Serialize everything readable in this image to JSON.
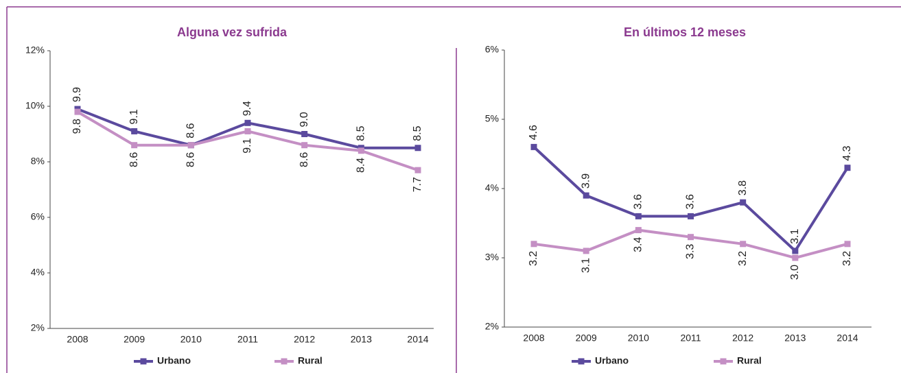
{
  "chart_data": [
    {
      "type": "line",
      "title": "Alguna vez sufrida",
      "categories": [
        "2008",
        "2009",
        "2010",
        "2011",
        "2012",
        "2013",
        "2014"
      ],
      "series": [
        {
          "name": "Urbano",
          "color": "#5b4a9e",
          "values": [
            9.9,
            9.1,
            8.6,
            9.4,
            9.0,
            8.5,
            8.5
          ],
          "value_labels": [
            "9.9",
            "9.1",
            "8.6",
            "9.4",
            "9.0",
            "8.5",
            "8.5"
          ]
        },
        {
          "name": "Rural",
          "color": "#c48fc4",
          "values": [
            9.8,
            8.6,
            8.6,
            9.1,
            8.6,
            8.4,
            7.7
          ],
          "value_labels": [
            "9.8",
            "8.6",
            "8.6",
            "9.1",
            "8.6",
            "8.4",
            "7.7"
          ]
        }
      ],
      "ylim": [
        2,
        12
      ],
      "yticks": [
        {
          "value": 2,
          "label": "2%"
        },
        {
          "value": 4,
          "label": "4%"
        },
        {
          "value": 6,
          "label": "6%"
        },
        {
          "value": 8,
          "label": "8%"
        },
        {
          "value": 10,
          "label": "10%"
        },
        {
          "value": 12,
          "label": "12%"
        }
      ],
      "grid": false,
      "legend": "bottom"
    },
    {
      "type": "line",
      "title": "En últimos 12 meses",
      "categories": [
        "2008",
        "2009",
        "2010",
        "2011",
        "2012",
        "2013",
        "2014"
      ],
      "series": [
        {
          "name": "Urbano",
          "color": "#5b4a9e",
          "values": [
            4.6,
            3.9,
            3.6,
            3.6,
            3.8,
            3.1,
            4.3
          ],
          "value_labels": [
            "4.6",
            "3.9",
            "3.6",
            "3.6",
            "3.8",
            "3.1",
            "4.3"
          ]
        },
        {
          "name": "Rural",
          "color": "#c48fc4",
          "values": [
            3.2,
            3.1,
            3.4,
            3.3,
            3.2,
            3.0,
            3.2
          ],
          "value_labels": [
            "3.2",
            "3.1",
            "3.4",
            "3.3",
            "3.2",
            "3.0",
            "3.2"
          ]
        }
      ],
      "ylim": [
        2,
        6
      ],
      "yticks": [
        {
          "value": 2,
          "label": "2%"
        },
        {
          "value": 3,
          "label": "3%"
        },
        {
          "value": 4,
          "label": "4%"
        },
        {
          "value": 5,
          "label": "5%"
        },
        {
          "value": 6,
          "label": "6%"
        }
      ],
      "grid": false,
      "legend": "bottom"
    }
  ]
}
